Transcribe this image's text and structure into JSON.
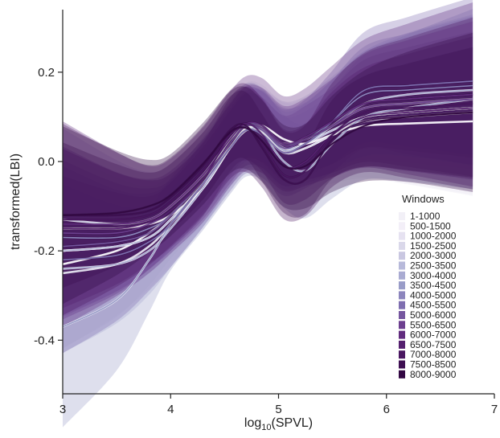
{
  "chart_data": {
    "type": "line",
    "title": "",
    "xlabel": "log10(SPVL)",
    "xlabel_base": "log",
    "xlabel_sub": "10",
    "xlabel_tail": "(SPVL)",
    "ylabel": "transformed(LBI)",
    "xlim": [
      3,
      7
    ],
    "ylim": [
      -0.52,
      0.34
    ],
    "x_ticks": [
      3,
      4,
      5,
      6,
      7
    ],
    "y_ticks": [
      -0.4,
      -0.2,
      0.0,
      0.2
    ],
    "x_tick_labels": [
      "3",
      "4",
      "5",
      "6",
      "7"
    ],
    "y_tick_labels": [
      "-0.4",
      "-0.2",
      "0.0",
      "0.2"
    ],
    "grid": false,
    "legend": {
      "title": "Windows",
      "placement": "right",
      "entries": [
        "1-1000",
        "500-1500",
        "1000-2000",
        "1500-2500",
        "2000-3000",
        "2500-3500",
        "3000-4000",
        "3500-4500",
        "4000-5000",
        "4500-5500",
        "5000-6000",
        "5500-6500",
        "6000-7000",
        "6500-7500",
        "7000-8000",
        "7500-8500",
        "8000-9000"
      ]
    },
    "x": [
      3.0,
      3.5,
      3.8,
      4.0,
      4.3,
      4.55,
      4.7,
      4.85,
      5.05,
      5.25,
      5.5,
      5.8,
      6.2,
      6.8
    ],
    "series": [
      {
        "name": "1-1000",
        "color": "#f2f0f7",
        "values": [
          -0.23,
          -0.2,
          -0.16,
          -0.12,
          -0.04,
          0.05,
          0.08,
          0.06,
          0.02,
          0.03,
          0.06,
          0.1,
          0.11,
          0.12
        ]
      },
      {
        "name": "500-1500",
        "color": "#f3eff8",
        "values": [
          -0.15,
          -0.15,
          -0.14,
          -0.12,
          -0.06,
          0.03,
          0.07,
          0.08,
          0.05,
          0.04,
          0.06,
          0.08,
          0.085,
          0.09
        ]
      },
      {
        "name": "1000-2000",
        "color": "#e6e2f1",
        "values": [
          -0.2,
          -0.19,
          -0.17,
          -0.13,
          -0.05,
          0.03,
          0.075,
          0.07,
          0.03,
          0.04,
          0.07,
          0.1,
          0.11,
          0.12
        ]
      },
      {
        "name": "1500-2500",
        "color": "#dad8ea",
        "values": [
          -0.25,
          -0.23,
          -0.19,
          -0.14,
          -0.06,
          0.03,
          0.07,
          0.065,
          0.02,
          0.03,
          0.06,
          0.09,
          0.1,
          0.11
        ]
      },
      {
        "name": "2000-3000",
        "color": "#c9c7e1",
        "values": [
          -0.13,
          -0.14,
          -0.13,
          -0.1,
          -0.03,
          0.05,
          0.08,
          0.07,
          0.04,
          0.05,
          0.08,
          0.12,
          0.13,
          0.14
        ]
      },
      {
        "name": "2500-3500",
        "color": "#b7b9da",
        "values": [
          -0.2,
          -0.19,
          -0.17,
          -0.13,
          -0.05,
          0.04,
          0.08,
          0.075,
          0.03,
          0.04,
          0.07,
          0.1,
          0.11,
          0.12
        ]
      },
      {
        "name": "3000-4000",
        "color": "#a9abd2",
        "values": [
          -0.24,
          -0.23,
          -0.2,
          -0.15,
          -0.06,
          0.03,
          0.07,
          0.07,
          0.025,
          0.04,
          0.08,
          0.13,
          0.15,
          0.16
        ]
      },
      {
        "name": "3500-4500",
        "color": "#999cc8",
        "values": [
          -0.37,
          -0.31,
          -0.22,
          -0.14,
          -0.05,
          0.03,
          0.07,
          0.06,
          0.0,
          -0.02,
          0.04,
          0.1,
          0.12,
          0.14
        ]
      },
      {
        "name": "4000-5000",
        "color": "#8c85bd",
        "values": [
          -0.17,
          -0.17,
          -0.15,
          -0.12,
          -0.04,
          0.04,
          0.08,
          0.08,
          0.04,
          0.05,
          0.09,
          0.15,
          0.16,
          0.17
        ]
      },
      {
        "name": "4500-5500",
        "color": "#7e6eb0",
        "values": [
          -0.22,
          -0.21,
          -0.18,
          -0.14,
          -0.05,
          0.03,
          0.07,
          0.06,
          0.02,
          0.04,
          0.09,
          0.16,
          0.17,
          0.18
        ]
      },
      {
        "name": "5000-6000",
        "color": "#75569f",
        "values": [
          -0.19,
          -0.18,
          -0.16,
          -0.12,
          -0.04,
          0.04,
          0.08,
          0.07,
          0.03,
          0.05,
          0.08,
          0.13,
          0.14,
          0.15
        ]
      },
      {
        "name": "5500-6500",
        "color": "#6c3f8f",
        "values": [
          -0.16,
          -0.16,
          -0.14,
          -0.11,
          -0.04,
          0.04,
          0.08,
          0.075,
          0.035,
          0.05,
          0.08,
          0.12,
          0.13,
          0.14
        ]
      },
      {
        "name": "6000-7000",
        "color": "#612c7e",
        "values": [
          -0.14,
          -0.14,
          -0.13,
          -0.1,
          -0.03,
          0.05,
          0.085,
          0.08,
          0.04,
          0.055,
          0.09,
          0.13,
          0.14,
          0.15
        ]
      },
      {
        "name": "6500-7500",
        "color": "#55206f",
        "values": [
          -0.15,
          -0.15,
          -0.135,
          -0.11,
          -0.04,
          0.06,
          0.085,
          0.06,
          -0.01,
          0.0,
          0.06,
          0.1,
          0.11,
          0.12
        ]
      },
      {
        "name": "7000-8000",
        "color": "#4a1761",
        "values": [
          -0.13,
          -0.13,
          -0.12,
          -0.09,
          -0.02,
          0.06,
          0.075,
          0.04,
          -0.03,
          -0.02,
          0.06,
          0.11,
          0.12,
          0.13
        ]
      },
      {
        "name": "7500-8500",
        "color": "#3e0f52",
        "values": [
          -0.12,
          -0.12,
          -0.11,
          -0.08,
          -0.01,
          0.07,
          0.08,
          0.03,
          -0.04,
          -0.04,
          0.05,
          0.09,
          0.1,
          0.11
        ]
      },
      {
        "name": "8000-9000",
        "color": "#330843",
        "values": [
          -0.12,
          -0.115,
          -0.1,
          -0.075,
          -0.005,
          0.065,
          0.075,
          0.045,
          -0.01,
          -0.01,
          0.04,
          0.08,
          0.1,
          0.11
        ]
      }
    ]
  }
}
